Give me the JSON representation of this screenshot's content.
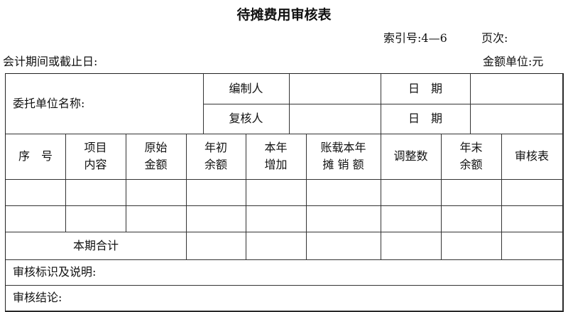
{
  "title": "待摊费用审核表",
  "index_label": "索引号:4—6",
  "page_label": "页次:",
  "period_label": "会计期间或截止日:",
  "unit_label": "金额单位:元",
  "header": {
    "client": "委托单位名称:",
    "preparer": "编制人",
    "reviewer": "复核人",
    "date1": "日　期",
    "date2": "日　期"
  },
  "columns": [
    "序　号",
    "项目\n内容",
    "原始\n金额",
    "年初\n余额",
    "本年\n增加",
    "账载本年\n摊 销 额",
    "调整数",
    "年末\n余额",
    "审核表"
  ],
  "total_label": "本期合计",
  "notes_label": "审核标识及说明:",
  "conclusion_label": "审核结论:"
}
